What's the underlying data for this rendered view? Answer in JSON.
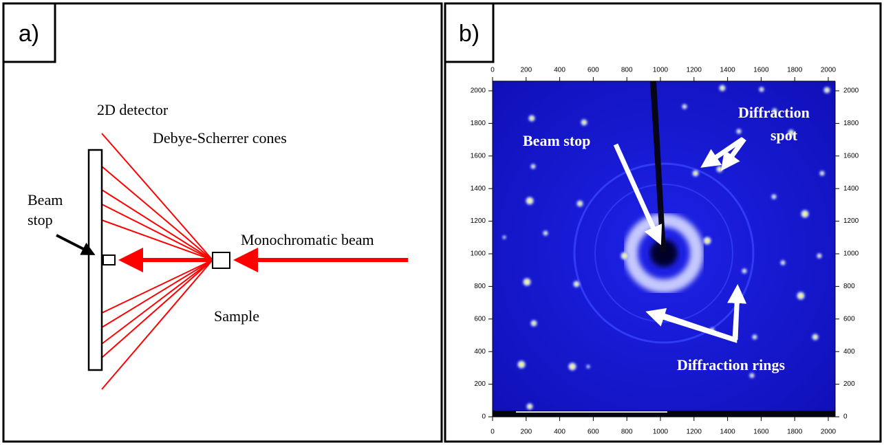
{
  "panel_a": {
    "label": "a)",
    "detector": "2D detector",
    "cones": "Debye-Scherrer cones",
    "beam_stop": [
      "Beam",
      "stop"
    ],
    "beam": "Monochromatic beam",
    "sample": "Sample"
  },
  "panel_b": {
    "label": "b)",
    "beam_stop": "Beam stop",
    "spot": [
      "Diffraction",
      "spot"
    ],
    "rings": "Diffraction rings",
    "xticks": [
      0,
      200,
      400,
      600,
      800,
      1000,
      1200,
      1400,
      1600,
      1800,
      2000
    ],
    "yticks": [
      0,
      200,
      400,
      600,
      800,
      1000,
      1200,
      1400,
      1600,
      1800,
      2000
    ]
  }
}
